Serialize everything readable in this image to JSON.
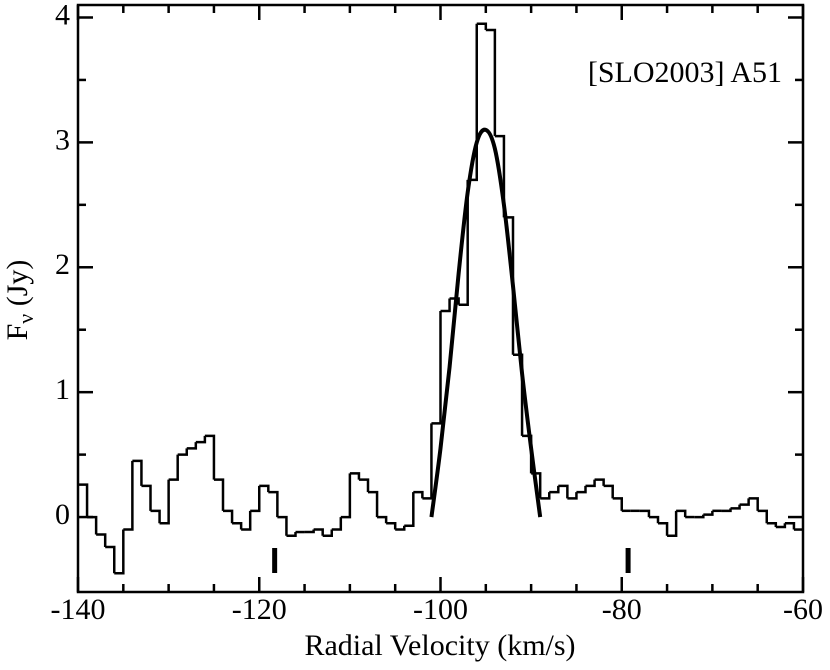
{
  "chart_data": {
    "type": "histogram",
    "xlabel": "Radial Velocity (km/s)",
    "ylabel": [
      "F",
      "ν",
      " (Jy)"
    ],
    "annotation": "[SLO2003] A51",
    "xlim": [
      -140,
      -60
    ],
    "xticks": [
      -140,
      -120,
      -100,
      -80,
      -60
    ],
    "ylim": [
      -0.6,
      4.1
    ],
    "yticks": [
      0,
      1,
      2,
      3,
      4
    ],
    "color": "#000000",
    "bins": [
      -140,
      -139,
      -138,
      -137,
      -136,
      -135,
      -134,
      -133,
      -132,
      -131,
      -130,
      -129,
      -128,
      -127,
      -126,
      -125,
      -124,
      -123,
      -122,
      -121,
      -120,
      -119,
      -118,
      -117,
      -116,
      -115,
      -114,
      -113,
      -112,
      -111,
      -110,
      -109,
      -108,
      -107,
      -106,
      -105,
      -104,
      -103,
      -102,
      -101,
      -100,
      -99,
      -98,
      -97,
      -96,
      -95,
      -94,
      -93,
      -92,
      -91,
      -90,
      -89,
      -88,
      -87,
      -86,
      -85,
      -84,
      -83,
      -82,
      -81,
      -80,
      -79,
      -78,
      -77,
      -76,
      -75,
      -74,
      -73,
      -72,
      -71,
      -70,
      -69,
      -68,
      -67,
      -66,
      -65,
      -64,
      -63,
      -62,
      -61,
      -60
    ],
    "values": [
      0.26,
      0.0,
      -0.14,
      -0.24,
      -0.45,
      -0.1,
      0.45,
      0.25,
      0.05,
      -0.05,
      0.3,
      0.5,
      0.55,
      0.6,
      0.65,
      0.3,
      0.05,
      -0.05,
      -0.1,
      0.05,
      0.25,
      0.2,
      0.0,
      -0.15,
      -0.12,
      -0.12,
      -0.1,
      -0.15,
      -0.1,
      0.0,
      0.35,
      0.3,
      0.2,
      0.0,
      -0.05,
      -0.1,
      -0.07,
      0.2,
      0.15,
      0.75,
      1.65,
      1.75,
      1.7,
      2.7,
      3.95,
      3.9,
      3.05,
      2.4,
      1.3,
      0.65,
      0.35,
      0.15,
      0.2,
      0.25,
      0.15,
      0.2,
      0.25,
      0.3,
      0.25,
      0.15,
      0.05,
      0.05,
      0.05,
      0.0,
      -0.05,
      -0.15,
      0.05,
      0.0,
      0.0,
      0.02,
      0.05,
      0.05,
      0.07,
      0.1,
      0.15,
      0.05,
      -0.05,
      -0.08,
      -0.05,
      -0.1
    ],
    "fit": {
      "x": [
        -101,
        -100,
        -99,
        -98,
        -97,
        -96,
        -95,
        -94,
        -93,
        -92,
        -91,
        -90,
        -89
      ],
      "values": [
        0.0,
        0.55,
        1.2,
        1.95,
        2.6,
        3.0,
        3.1,
        2.95,
        2.5,
        1.85,
        1.15,
        0.55,
        0.0
      ]
    },
    "markers": [
      -118.3,
      -79.3
    ]
  }
}
